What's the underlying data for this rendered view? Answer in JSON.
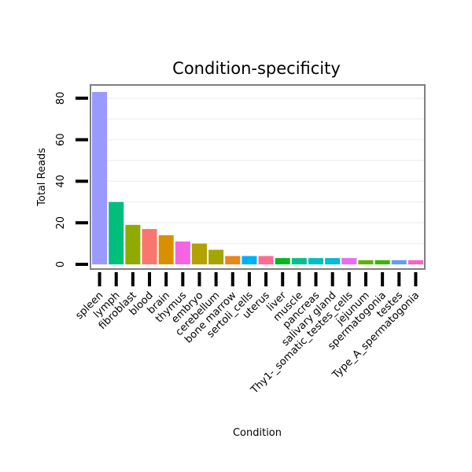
{
  "chart_data": {
    "type": "bar",
    "title": "Condition-specificity",
    "xlabel": "Condition",
    "ylabel": "Total Reads",
    "ylim": [
      0,
      88
    ],
    "yticks": [
      0,
      20,
      40,
      60,
      80
    ],
    "grid": true,
    "legend": "none",
    "categories": [
      "spleen",
      "lymph",
      "fibroblast",
      "blood",
      "brain",
      "thymus",
      "embryo",
      "cerebellum",
      "bone marrow",
      "sertoli_cells",
      "uterus",
      "liver",
      "muscle",
      "pancreas",
      "salivary gland",
      "Thy1-_somatic_testes_cells",
      "jejunum",
      "spermatogonia",
      "testes",
      "Type_A_spermatogonia"
    ],
    "values": [
      83,
      30,
      19,
      17,
      14,
      11,
      10,
      7,
      4,
      4,
      4,
      3,
      3,
      3,
      3,
      3,
      2,
      2,
      2,
      2
    ],
    "colors": [
      "#9999FF",
      "#00BF7D",
      "#8FAA00",
      "#F8766D",
      "#D89000",
      "#F564E3",
      "#B2A200",
      "#A3A500",
      "#E7861B",
      "#00B0F6",
      "#FF6C91",
      "#00B81F",
      "#00C08B",
      "#00BFC4",
      "#00BCD8",
      "#E76BF3",
      "#5BB300",
      "#39B600",
      "#619CFF",
      "#FF62BC"
    ]
  }
}
